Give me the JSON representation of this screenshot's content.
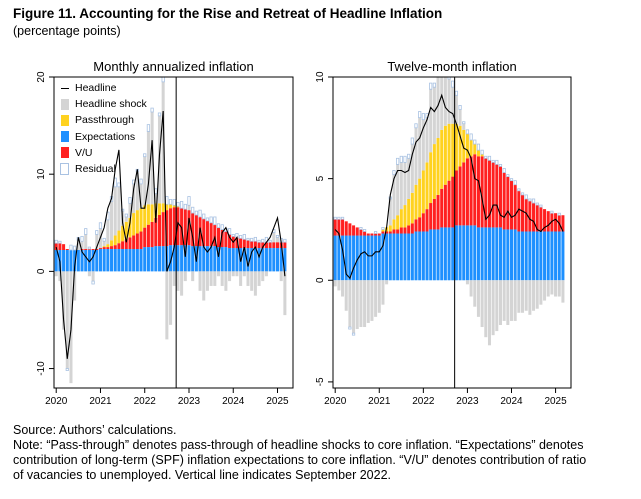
{
  "figure": {
    "title": "Figure 11. Accounting for the Rise and Retreat of Headline Inflation",
    "subtitle": "(percentage points)"
  },
  "legend": {
    "items": [
      {
        "label": "Headline",
        "color": "#000000",
        "kind": "line"
      },
      {
        "label": "Headline shock",
        "color": "#d4d4d4",
        "kind": "fill"
      },
      {
        "label": "Passthrough",
        "color": "#ffd21f",
        "kind": "fill"
      },
      {
        "label": "Expectations",
        "color": "#1e90ff",
        "kind": "fill"
      },
      {
        "label": "V/U",
        "color": "#ff2020",
        "kind": "fill"
      },
      {
        "label": "Residual",
        "color": "#a9c2e2",
        "kind": "outline"
      }
    ]
  },
  "notes": {
    "source": "Source: Authors’ calculations.",
    "note_line1": "Note: “Pass-through” denotes pass-through of headline shocks to core inflation. “Expectations” denotes",
    "note_line2": "contribution of long-term (SPF) inflation expectations to core inflation. “V/U” denotes contribution of ratio",
    "note_line3": "of vacancies to unemployed. Vertical line indicates September 2022."
  },
  "chart_data": [
    {
      "type": "bar",
      "stacked": true,
      "title": "Monthly annualized inflation",
      "xlabel": "",
      "ylabel": "",
      "ylim": [
        -12,
        20
      ],
      "yticks": [
        -10,
        0,
        10,
        20
      ],
      "xlim": [
        2019.95,
        2025.35
      ],
      "xticks": [
        2020,
        2021,
        2022,
        2023,
        2024,
        2025
      ],
      "xtick_labels": [
        "2020",
        "2021",
        "2022",
        "2023",
        "2024",
        "2025"
      ],
      "vline": 2022.71,
      "grid": false,
      "legend_position": "top-left",
      "monthly_from": "2020-01",
      "monthly_to": "2025-03",
      "series": [
        {
          "name": "Expectations",
          "color": "#1e90ff",
          "values": [
            2.2,
            2.2,
            2.2,
            2.2,
            2.2,
            2.2,
            2.2,
            2.2,
            2.2,
            2.2,
            2.2,
            2.2,
            2.3,
            2.3,
            2.3,
            2.3,
            2.3,
            2.3,
            2.3,
            2.3,
            2.3,
            2.3,
            2.3,
            2.3,
            2.5,
            2.5,
            2.5,
            2.6,
            2.6,
            2.6,
            2.6,
            2.7,
            2.7,
            2.7,
            2.7,
            2.7,
            2.7,
            2.6,
            2.6,
            2.6,
            2.6,
            2.6,
            2.6,
            2.6,
            2.5,
            2.5,
            2.5,
            2.4,
            2.4,
            2.4,
            2.4,
            2.4,
            2.4,
            2.4,
            2.4,
            2.4,
            2.4,
            2.4,
            2.4,
            2.4,
            2.4,
            2.4,
            2.4
          ]
        },
        {
          "name": "V/U",
          "color": "#ff2020",
          "values": [
            0.7,
            0.7,
            0.6,
            0.1,
            0.0,
            0.0,
            0.0,
            0.1,
            0.1,
            0.1,
            0.1,
            0.1,
            0.1,
            0.2,
            0.2,
            0.3,
            0.4,
            0.6,
            0.8,
            1.0,
            1.2,
            1.4,
            1.6,
            1.8,
            2.0,
            2.3,
            2.6,
            2.9,
            3.2,
            3.5,
            3.7,
            3.8,
            3.9,
            3.9,
            3.8,
            3.7,
            3.6,
            3.4,
            3.2,
            3.0,
            2.8,
            2.6,
            2.4,
            2.2,
            2.0,
            1.8,
            1.6,
            1.4,
            1.2,
            1.1,
            1.0,
            0.9,
            0.8,
            0.7,
            0.7,
            0.6,
            0.6,
            0.6,
            0.6,
            0.6,
            0.6,
            0.6,
            0.6
          ]
        },
        {
          "name": "Passthrough",
          "color": "#ffd21f",
          "values": [
            0.0,
            0.0,
            0.0,
            0.0,
            0.0,
            0.0,
            0.0,
            0.0,
            0.0,
            0.0,
            0.0,
            0.0,
            0.0,
            0.1,
            0.3,
            0.6,
            1.0,
            1.3,
            1.6,
            1.8,
            2.0,
            2.3,
            2.4,
            2.4,
            2.3,
            2.1,
            1.8,
            1.5,
            1.2,
            0.9,
            0.6,
            0.4,
            0.2,
            0.1,
            0.0,
            0.0,
            0.0,
            0.0,
            0.0,
            0.0,
            0.0,
            0.0,
            0.0,
            0.0,
            0.0,
            0.0,
            0.0,
            0.0,
            0.0,
            0.0,
            0.0,
            0.0,
            0.0,
            0.0,
            0.0,
            0.0,
            0.0,
            0.0,
            0.0,
            0.0,
            0.0,
            0.0,
            0.0
          ]
        },
        {
          "name": "Headline shock",
          "color": "#d4d4d4",
          "values": [
            -0.5,
            -1.0,
            -6.0,
            -10.0,
            -11.5,
            -3.0,
            1.0,
            0.8,
            1.5,
            -0.5,
            -1.0,
            1.5,
            2.0,
            0.5,
            2.5,
            4.0,
            5.0,
            4.5,
            1.5,
            0.5,
            1.5,
            3.0,
            4.0,
            2.5,
            5.0,
            7.5,
            9.5,
            1.0,
            9.0,
            12.5,
            -7.0,
            -5.5,
            -1.5,
            -2.0,
            -2.5,
            -1.0,
            0.5,
            -1.0,
            0.0,
            -2.0,
            -3.0,
            -2.0,
            -1.5,
            -1.5,
            -0.5,
            -1.5,
            -2.0,
            -1.0,
            -0.5,
            -0.5,
            -1.5,
            -0.5,
            -1.5,
            -2.0,
            -2.5,
            -1.5,
            -1.0,
            -0.5,
            0.0,
            1.0,
            0.5,
            -1.0,
            -4.5
          ]
        },
        {
          "name": "Residual",
          "color": "#a9c2e2",
          "outline": true,
          "values": [
            0.3,
            0.2,
            0.0,
            -0.2,
            0.5,
            0.4,
            0.3,
            0.5,
            0.6,
            0.2,
            -0.3,
            0.4,
            0.6,
            0.3,
            0.8,
            0.5,
            0.9,
            0.4,
            0.2,
            0.3,
            0.6,
            0.4,
            0.2,
            0.5,
            0.3,
            0.7,
            0.4,
            0.5,
            0.3,
            0.6,
            0.8,
            0.5,
            0.6,
            0.4,
            0.7,
            0.5,
            0.9,
            0.6,
            0.4,
            0.7,
            0.5,
            0.3,
            0.6,
            0.8,
            0.4,
            0.5,
            0.3,
            0.6,
            0.2,
            0.4,
            0.3,
            0.5,
            0.2,
            0.3,
            0.4,
            0.2,
            0.3,
            0.5,
            0.2,
            0.3,
            0.2,
            0.4,
            0.3
          ]
        },
        {
          "name": "Headline",
          "color": "#000000",
          "kind": "line",
          "values": [
            2.5,
            1.0,
            -5.0,
            -9.0,
            -6.0,
            0.5,
            3.5,
            2.0,
            1.5,
            1.0,
            1.5,
            2.5,
            3.5,
            4.5,
            6.5,
            7.5,
            10.5,
            12.5,
            5.0,
            3.0,
            5.0,
            8.5,
            10.5,
            6.5,
            6.5,
            9.0,
            13.5,
            5.0,
            12.0,
            16.5,
            0.0,
            1.0,
            2.5,
            5.0,
            4.5,
            1.5,
            5.5,
            3.5,
            1.0,
            4.5,
            2.5,
            2.0,
            2.5,
            3.5,
            1.5,
            4.0,
            4.5,
            3.5,
            3.0,
            3.5,
            1.0,
            2.5,
            0.5,
            2.0,
            2.5,
            1.5,
            2.5,
            3.0,
            3.5,
            4.5,
            5.5,
            3.0,
            -0.5
          ]
        }
      ]
    },
    {
      "type": "bar",
      "stacked": true,
      "title": "Twelve-month inflation",
      "xlabel": "",
      "ylabel": "",
      "ylim": [
        -5.3,
        10
      ],
      "yticks": [
        -5,
        0,
        5,
        10
      ],
      "xlim": [
        2019.95,
        2025.35
      ],
      "xticks": [
        2020,
        2021,
        2022,
        2023,
        2024,
        2025
      ],
      "xtick_labels": [
        "2020",
        "2021",
        "2022",
        "2023",
        "2024",
        "2025"
      ],
      "vline": 2022.71,
      "grid": false,
      "monthly_from": "2020-01",
      "monthly_to": "2025-03",
      "series": [
        {
          "name": "Expectations",
          "color": "#1e90ff",
          "values": [
            2.2,
            2.2,
            2.2,
            2.2,
            2.2,
            2.2,
            2.2,
            2.2,
            2.2,
            2.2,
            2.2,
            2.2,
            2.2,
            2.3,
            2.3,
            2.3,
            2.3,
            2.3,
            2.3,
            2.3,
            2.3,
            2.3,
            2.4,
            2.4,
            2.4,
            2.4,
            2.5,
            2.5,
            2.5,
            2.6,
            2.6,
            2.6,
            2.6,
            2.7,
            2.7,
            2.7,
            2.7,
            2.7,
            2.7,
            2.6,
            2.6,
            2.6,
            2.6,
            2.6,
            2.6,
            2.6,
            2.5,
            2.5,
            2.5,
            2.5,
            2.4,
            2.4,
            2.4,
            2.4,
            2.4,
            2.4,
            2.4,
            2.4,
            2.4,
            2.4,
            2.4,
            2.4,
            2.4
          ]
        },
        {
          "name": "V/U",
          "color": "#ff2020",
          "values": [
            0.8,
            0.8,
            0.8,
            0.7,
            0.6,
            0.5,
            0.4,
            0.3,
            0.2,
            0.1,
            0.1,
            0.1,
            0.1,
            0.1,
            0.1,
            0.1,
            0.2,
            0.2,
            0.3,
            0.3,
            0.4,
            0.5,
            0.6,
            0.7,
            0.9,
            1.1,
            1.3,
            1.5,
            1.7,
            1.9,
            2.1,
            2.3,
            2.5,
            2.7,
            2.9,
            3.1,
            3.3,
            3.4,
            3.5,
            3.5,
            3.5,
            3.4,
            3.3,
            3.2,
            3.1,
            3.0,
            2.8,
            2.6,
            2.4,
            2.2,
            2.0,
            1.8,
            1.6,
            1.5,
            1.4,
            1.3,
            1.2,
            1.1,
            1.0,
            0.9,
            0.9,
            0.8,
            0.8
          ]
        },
        {
          "name": "Passthrough",
          "color": "#ffd21f",
          "values": [
            0.0,
            0.0,
            0.0,
            0.0,
            0.0,
            0.0,
            0.0,
            0.0,
            0.0,
            0.0,
            0.0,
            0.0,
            0.0,
            0.1,
            0.2,
            0.3,
            0.5,
            0.7,
            0.9,
            1.1,
            1.3,
            1.5,
            1.7,
            1.9,
            2.1,
            2.3,
            2.5,
            2.7,
            2.8,
            2.9,
            2.9,
            2.8,
            2.6,
            2.3,
            2.0,
            1.6,
            1.2,
            0.8,
            0.5,
            0.3,
            0.1,
            0.0,
            0.0,
            0.0,
            0.0,
            0.0,
            0.0,
            0.0,
            0.0,
            0.0,
            0.0,
            0.0,
            0.0,
            0.0,
            0.0,
            0.0,
            0.0,
            0.0,
            0.0,
            0.0,
            0.0,
            0.0,
            0.0
          ]
        },
        {
          "name": "Headline shock",
          "color": "#d4d4d4",
          "values": [
            -0.3,
            -0.5,
            -0.8,
            -1.5,
            -2.3,
            -2.6,
            -2.4,
            -2.3,
            -2.3,
            -2.1,
            -2.0,
            -1.8,
            -1.6,
            -1.2,
            -0.2,
            1.3,
            2.2,
            2.5,
            2.3,
            2.1,
            2.0,
            2.4,
            2.8,
            3.0,
            2.5,
            2.2,
            3.1,
            2.8,
            3.2,
            3.6,
            3.0,
            2.2,
            1.8,
            1.4,
            0.8,
            0.3,
            -0.2,
            -0.8,
            -1.3,
            -1.8,
            -2.3,
            -2.8,
            -3.2,
            -2.7,
            -2.5,
            -2.2,
            -2.0,
            -2.2,
            -2.0,
            -2.0,
            -1.6,
            -1.6,
            -1.5,
            -1.7,
            -1.5,
            -1.4,
            -1.2,
            -1.0,
            -0.8,
            -0.7,
            -0.8,
            -0.8,
            -1.1
          ]
        },
        {
          "name": "Residual",
          "color": "#a9c2e2",
          "outline": true,
          "values": [
            0.1,
            0.1,
            0.1,
            0.0,
            -0.1,
            -0.1,
            0.0,
            0.1,
            0.1,
            0.0,
            0.0,
            0.1,
            0.0,
            0.1,
            0.0,
            0.1,
            0.2,
            0.3,
            0.3,
            0.3,
            0.2,
            0.3,
            0.2,
            0.3,
            0.3,
            0.2,
            0.3,
            0.2,
            0.2,
            0.3,
            0.2,
            0.3,
            0.3,
            0.2,
            0.2,
            0.1,
            0.2,
            0.3,
            0.2,
            0.3,
            0.2,
            0.1,
            0.2,
            0.1,
            0.2,
            0.1,
            0.2,
            0.1,
            0.1,
            0.2,
            0.1,
            0.1,
            0.2,
            0.1,
            0.2,
            0.1,
            0.1,
            0.0,
            0.0,
            0.1,
            0.0,
            0.1,
            0.0
          ]
        },
        {
          "name": "Headline",
          "color": "#000000",
          "kind": "line",
          "values": [
            2.5,
            2.3,
            1.5,
            0.3,
            0.1,
            0.6,
            1.0,
            1.3,
            1.4,
            1.2,
            1.2,
            1.4,
            1.4,
            1.7,
            2.6,
            4.2,
            5.0,
            5.4,
            5.4,
            5.3,
            5.4,
            6.2,
            6.8,
            7.0,
            7.5,
            7.9,
            8.5,
            8.3,
            8.6,
            9.1,
            8.5,
            8.3,
            8.2,
            7.7,
            7.1,
            6.5,
            6.4,
            6.0,
            5.0,
            4.9,
            4.0,
            3.0,
            3.2,
            3.7,
            3.7,
            3.2,
            3.1,
            3.4,
            3.1,
            3.2,
            3.5,
            3.4,
            3.3,
            3.0,
            2.9,
            2.5,
            2.4,
            2.6,
            2.7,
            2.9,
            3.0,
            2.8,
            2.4
          ]
        }
      ]
    }
  ]
}
